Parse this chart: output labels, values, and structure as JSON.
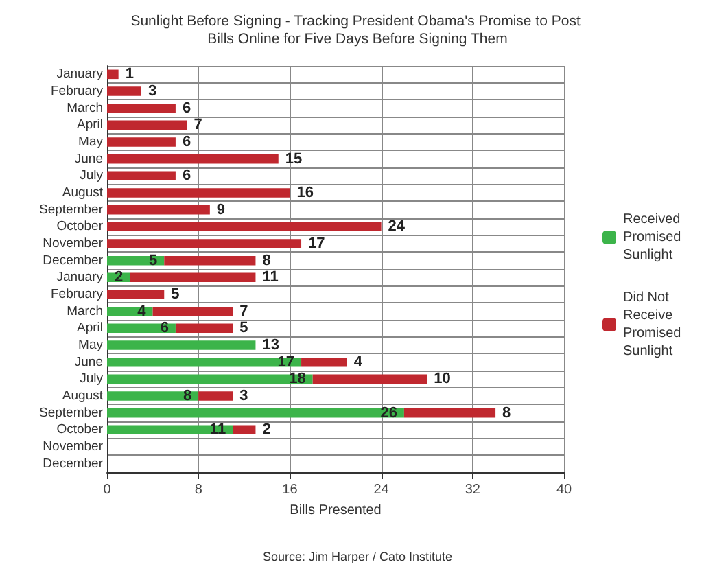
{
  "chart_data": {
    "type": "bar",
    "orientation": "horizontal",
    "stacked": true,
    "title": "Sunlight Before Signing - Tracking President Obama's Promise to Post Bills Online for Five Days Before Signing Them",
    "xlabel": "Bills Presented",
    "annotations": [
      "Source: Jim Harper / Cato Institute"
    ],
    "categories": [
      "January",
      "February",
      "March",
      "April",
      "May",
      "June",
      "July",
      "August",
      "September",
      "October",
      "November",
      "December",
      "January",
      "February",
      "March",
      "April",
      "May",
      "June",
      "July",
      "August",
      "September",
      "October",
      "November",
      "December"
    ],
    "series": [
      {
        "name": "Received Promised Sunlight",
        "color": "#3cb44a",
        "values": [
          null,
          null,
          null,
          null,
          null,
          null,
          null,
          null,
          null,
          null,
          null,
          5,
          2,
          null,
          4,
          6,
          13,
          17,
          18,
          8,
          26,
          11,
          null,
          null
        ]
      },
      {
        "name": "Did Not Receive Promised Sunlight",
        "color": "#c0282f",
        "values": [
          1,
          3,
          6,
          7,
          6,
          15,
          6,
          16,
          9,
          24,
          17,
          8,
          11,
          5,
          7,
          5,
          null,
          4,
          10,
          3,
          8,
          2,
          null,
          null
        ]
      }
    ],
    "xlim": [
      0,
      40
    ],
    "xticks": [
      0,
      8,
      16,
      24,
      32,
      40
    ],
    "grid": true,
    "legend": "right",
    "data_labels": true
  }
}
